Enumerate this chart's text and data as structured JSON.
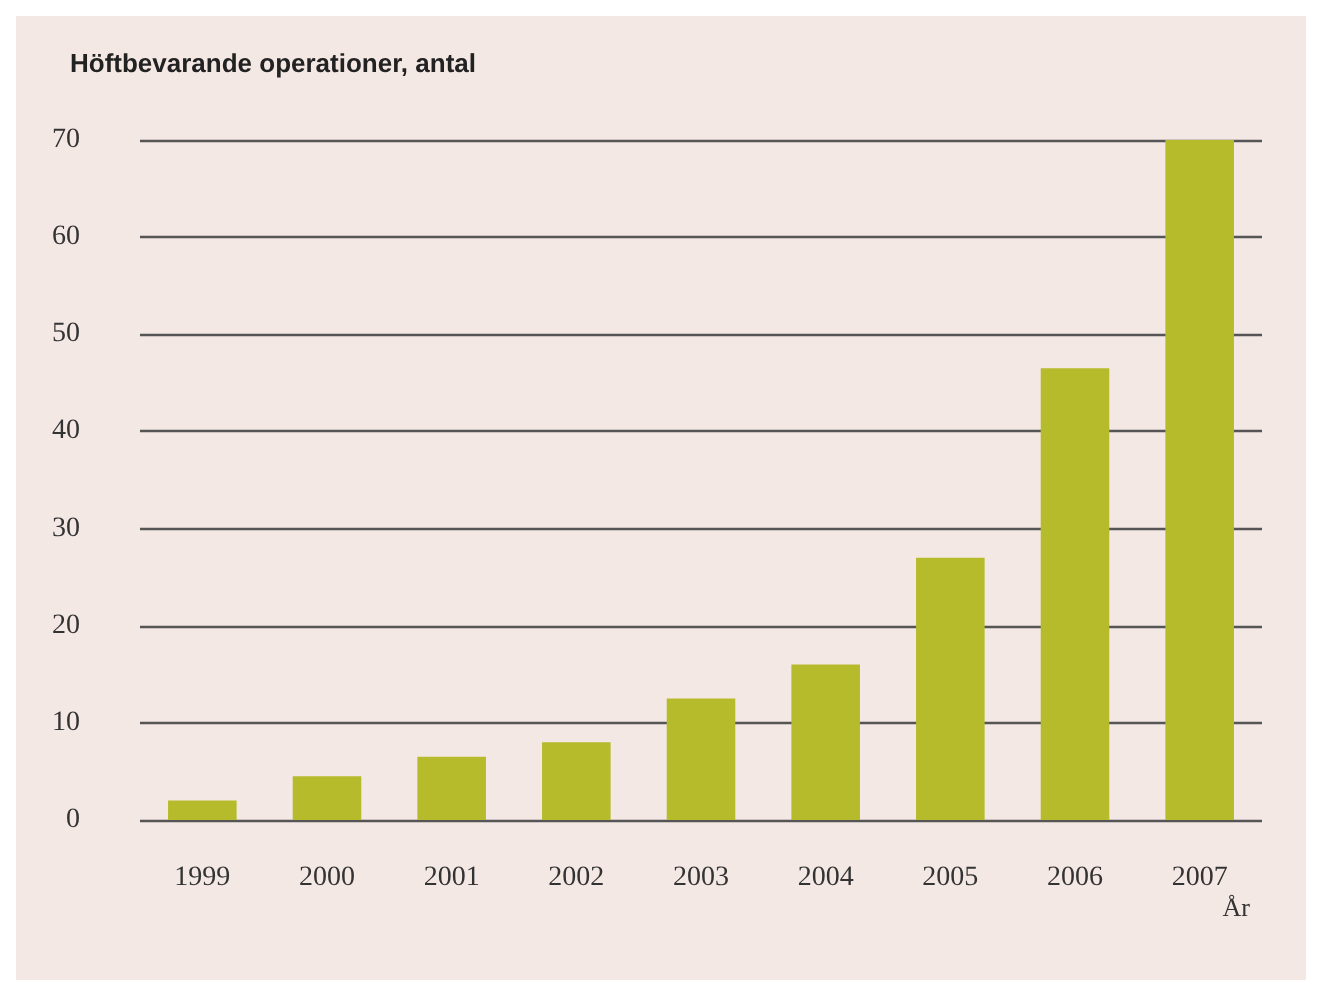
{
  "chart_data": {
    "type": "bar",
    "title": "Höftbevarande operationer, antal",
    "xlabel": "År",
    "categories": [
      "1999",
      "2000",
      "2001",
      "2002",
      "2003",
      "2004",
      "2005",
      "2006",
      "2007"
    ],
    "values": [
      2,
      4.5,
      6.5,
      8,
      12.5,
      16,
      27,
      46.5,
      70
    ],
    "color": "#b5bb2a",
    "ylim": [
      0,
      70
    ],
    "yticks": [
      0,
      10,
      20,
      30,
      40,
      50,
      60,
      70
    ],
    "grid": "y"
  }
}
